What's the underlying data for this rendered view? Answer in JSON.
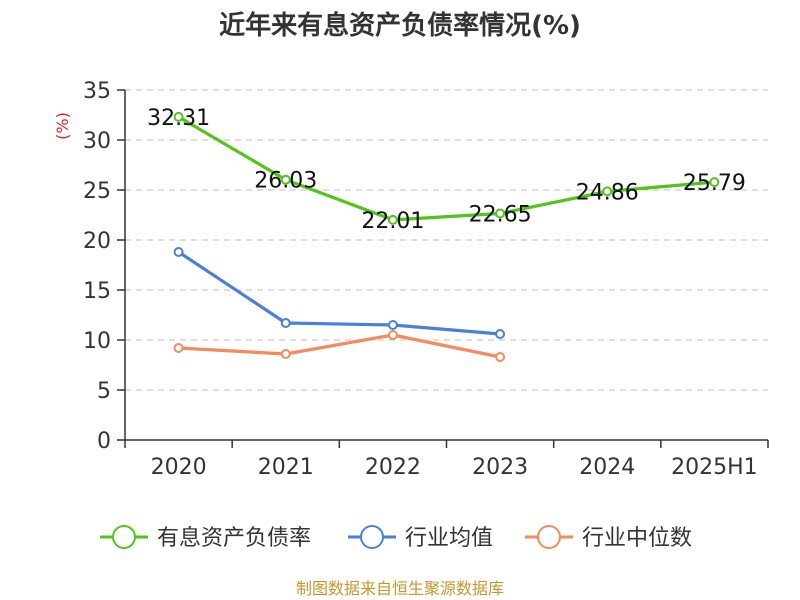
{
  "chart_data": {
    "type": "line",
    "title": "近年来有息资产负债率情况(%)",
    "ylabel": "(%)",
    "categories": [
      "2020",
      "2021",
      "2022",
      "2023",
      "2024",
      "2025H1"
    ],
    "ylim": [
      0,
      35
    ],
    "yticks": [
      0,
      5,
      10,
      15,
      20,
      25,
      30,
      35
    ],
    "grid": true,
    "legend_position": "bottom",
    "series": [
      {
        "name": "有息资产负债率",
        "color": "#52c41a",
        "values": [
          32.31,
          26.03,
          22.01,
          22.65,
          24.86,
          25.79
        ],
        "labels": [
          "32.31",
          "26.03",
          "22.01",
          "22.65",
          "24.86",
          "25.79"
        ]
      },
      {
        "name": "行业均值",
        "color": "#4a7fdc",
        "values": [
          18.8,
          11.7,
          11.5,
          10.6,
          null,
          null
        ]
      },
      {
        "name": "行业中位数",
        "color": "#f58a5a",
        "values": [
          9.2,
          8.6,
          10.5,
          8.3,
          null,
          null
        ]
      }
    ],
    "source": "制图数据来自恒生聚源数据库"
  }
}
